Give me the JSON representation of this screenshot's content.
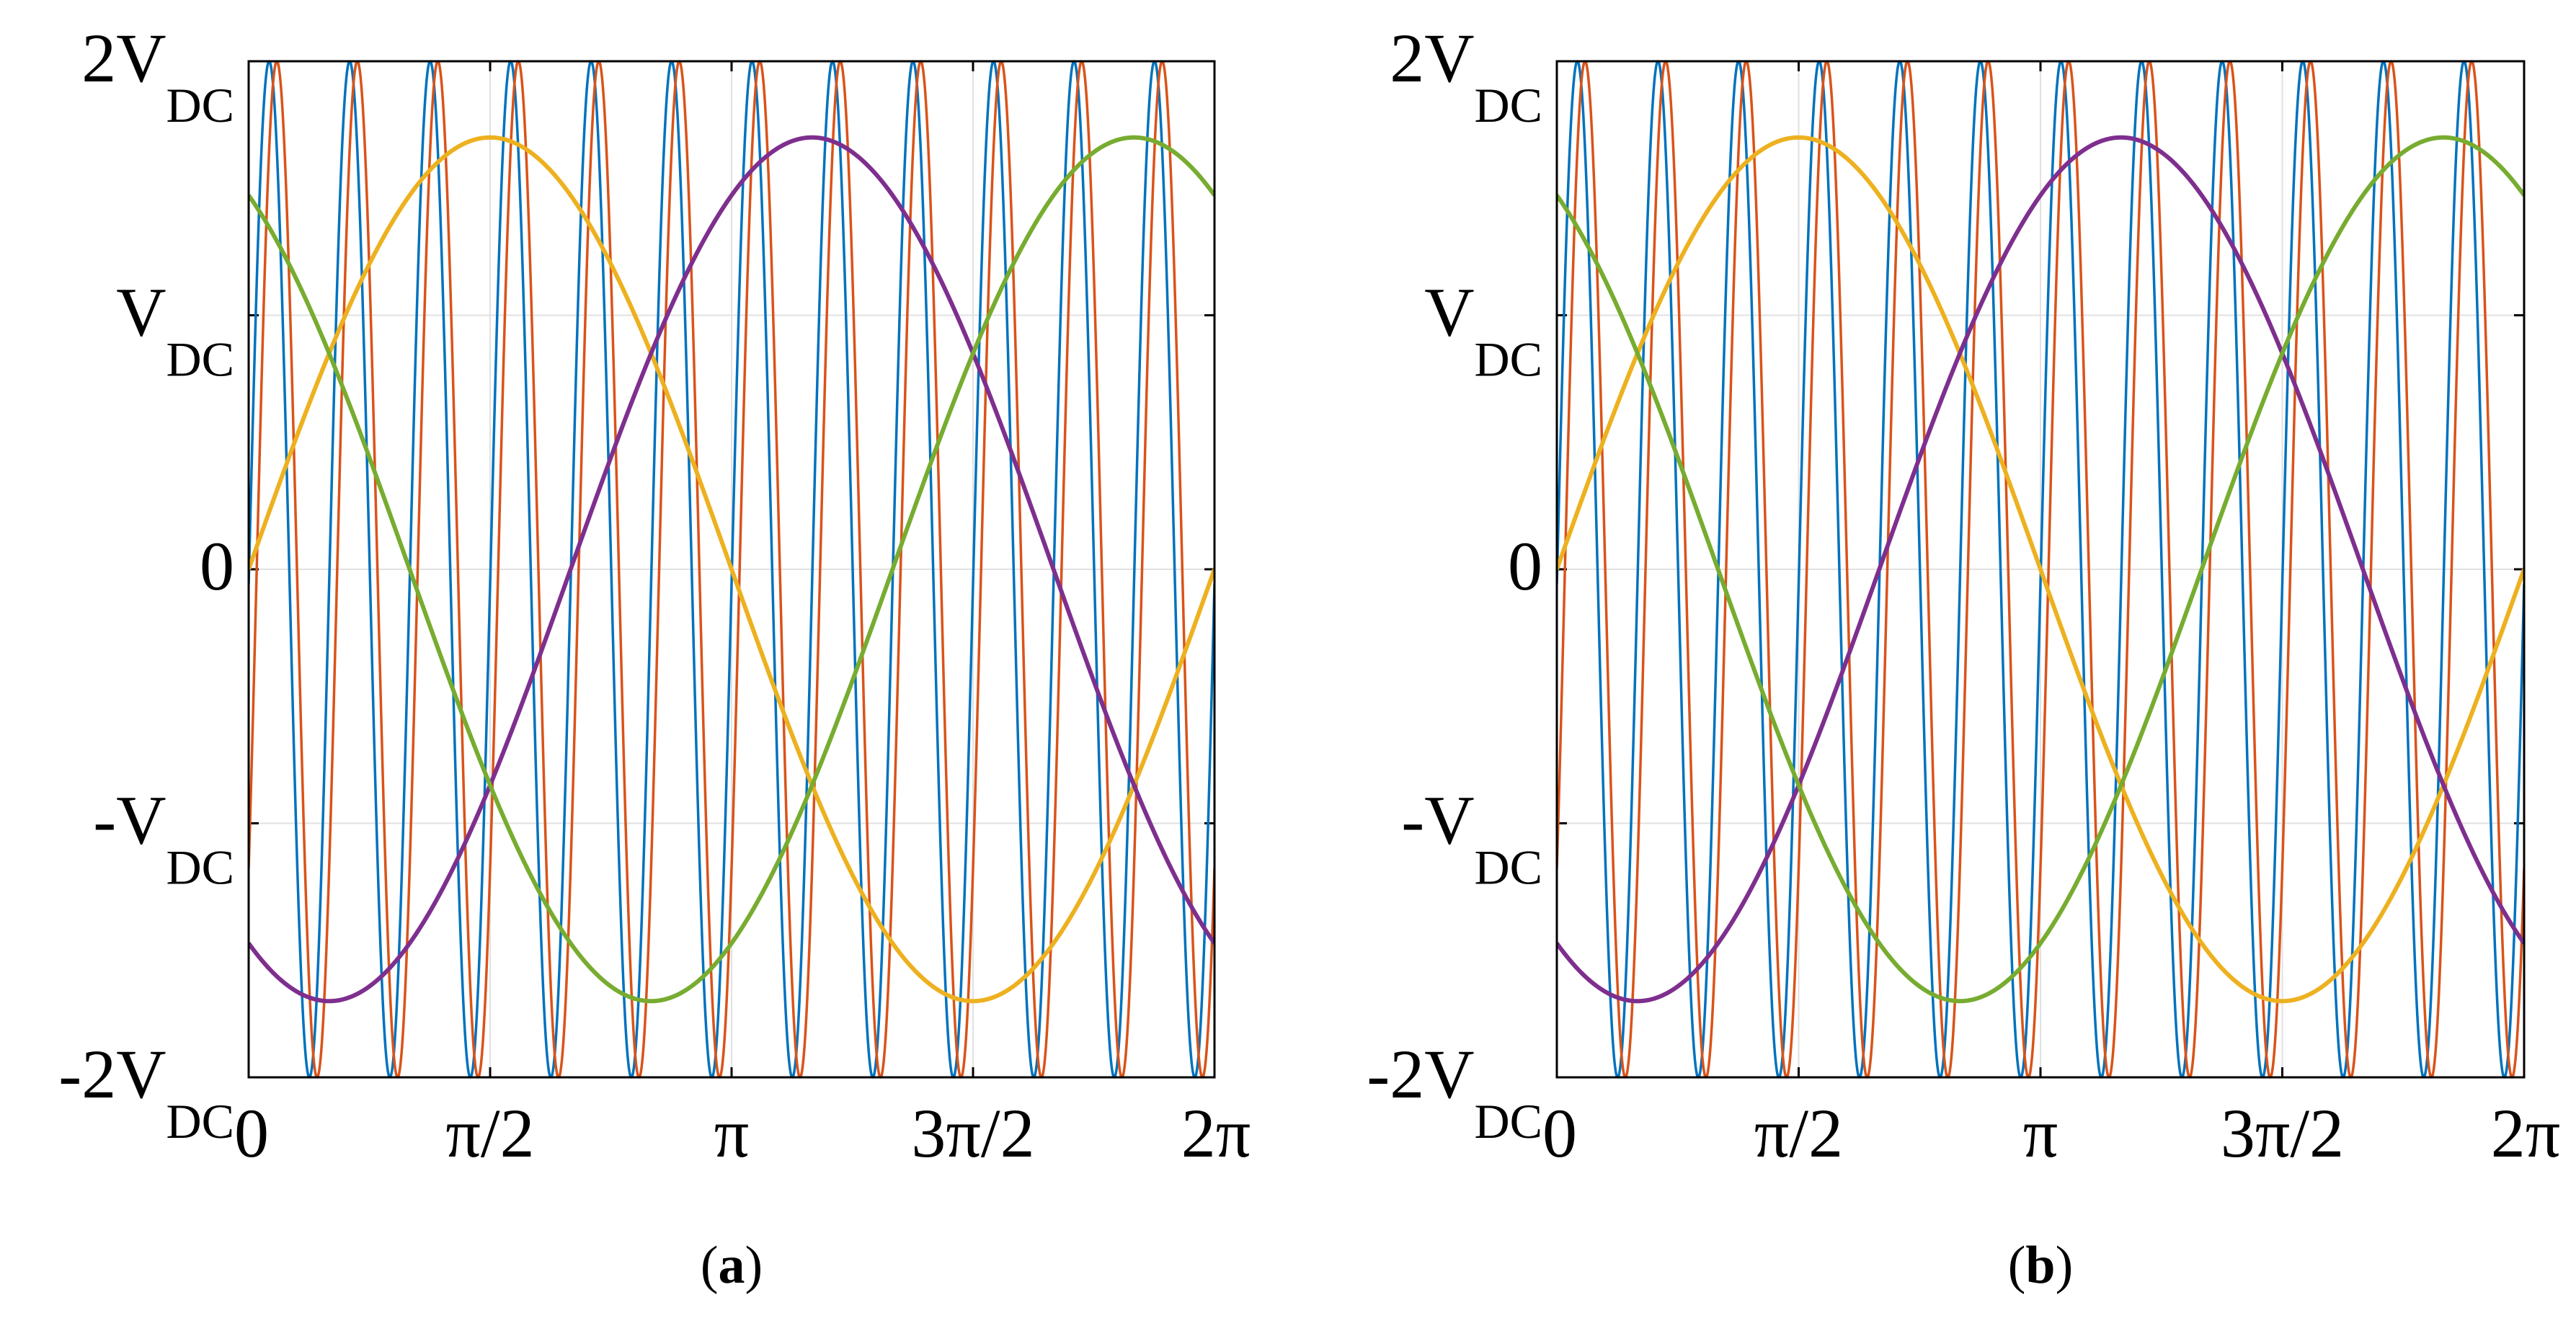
{
  "chart_data": [
    {
      "type": "line",
      "panel_label": "a",
      "caption": "(a)",
      "x_range": [
        0,
        6.2832
      ],
      "y_range": [
        -2,
        2
      ],
      "y_unit": "V_DC",
      "grid": true,
      "x_ticks": [
        {
          "value": 0,
          "label": "0"
        },
        {
          "value": 1.5708,
          "label": "π/2"
        },
        {
          "value": 3.1416,
          "label": "π"
        },
        {
          "value": 4.7124,
          "label": "3π/2"
        },
        {
          "value": 6.2832,
          "label": "2π"
        }
      ],
      "y_ticks": [
        {
          "value": 2,
          "main": "2V",
          "sub": "DC"
        },
        {
          "value": 1,
          "main": "V",
          "sub": "DC"
        },
        {
          "value": 0,
          "main": "0",
          "sub": ""
        },
        {
          "value": -1,
          "main": "-V",
          "sub": "DC"
        },
        {
          "value": -2,
          "main": "-2V",
          "sub": "DC"
        }
      ],
      "series": [
        {
          "color": "#0072BD",
          "kind": "carrier",
          "amplitude": 2,
          "harmonic": 12,
          "phase": -1.6
        },
        {
          "color": "#D95319",
          "kind": "carrier",
          "amplitude": 2,
          "harmonic": 12,
          "phase": -2.2
        },
        {
          "color": "#EDB120",
          "kind": "sine",
          "amplitude": 1.7,
          "phase": 0
        },
        {
          "color": "#7E2F8E",
          "kind": "sine",
          "amplitude": 1.7,
          "phase": -2.0944
        },
        {
          "color": "#77AC30",
          "kind": "sine",
          "amplitude": 1.7,
          "phase": 2.0944
        }
      ]
    },
    {
      "type": "line",
      "panel_label": "b",
      "caption": "(b)",
      "x_range": [
        0,
        6.2832
      ],
      "y_range": [
        -2,
        2
      ],
      "y_unit": "V_DC",
      "grid": true,
      "x_ticks": [
        {
          "value": 0,
          "label": "0"
        },
        {
          "value": 1.5708,
          "label": "π/2"
        },
        {
          "value": 3.1416,
          "label": "π"
        },
        {
          "value": 4.7124,
          "label": "3π/2"
        },
        {
          "value": 6.2832,
          "label": "2π"
        }
      ],
      "y_ticks": [
        {
          "value": 2,
          "main": "2V",
          "sub": "DC"
        },
        {
          "value": 1,
          "main": "V",
          "sub": "DC"
        },
        {
          "value": 0,
          "main": "0",
          "sub": ""
        },
        {
          "value": -1,
          "main": "-V",
          "sub": "DC"
        },
        {
          "value": -2,
          "main": "-2V",
          "sub": "DC"
        }
      ],
      "series": [
        {
          "color": "#0072BD",
          "kind": "carrier",
          "amplitude": 2,
          "harmonic": 12,
          "phase": -1.6
        },
        {
          "color": "#D95319",
          "kind": "carrier",
          "amplitude": 2,
          "harmonic": 12,
          "phase": -2.2
        },
        {
          "color": "#EDB120",
          "kind": "sine",
          "amplitude": 1.7,
          "phase": 0
        },
        {
          "color": "#7E2F8E",
          "kind": "sine",
          "amplitude": 1.7,
          "phase": -2.0944
        },
        {
          "color": "#77AC30",
          "kind": "sine",
          "amplitude": 1.7,
          "phase": 2.0944
        }
      ]
    }
  ]
}
